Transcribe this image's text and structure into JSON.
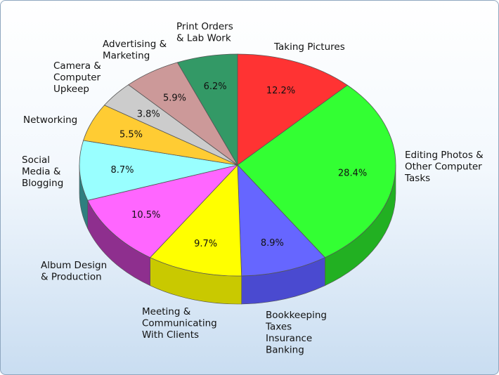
{
  "chart_data": {
    "type": "pie",
    "title": "",
    "slices": [
      {
        "label": [
          "Taking Pictures"
        ],
        "value": 12.2,
        "value_label": "12.2%",
        "color": "#ff3333",
        "side_color": "#cc1f1f"
      },
      {
        "label": [
          "Editing Photos &",
          "Other Computer",
          "Tasks"
        ],
        "value": 28.4,
        "value_label": "28.4%",
        "color": "#33ff33",
        "side_color": "#22b022"
      },
      {
        "label": [
          "Bookkeeping",
          "Taxes",
          "Insurance",
          "Banking"
        ],
        "value": 8.9,
        "value_label": "8.9%",
        "color": "#6666ff",
        "side_color": "#4a4ad0"
      },
      {
        "label": [
          "Meeting &",
          "Communicating",
          "With Clients"
        ],
        "value": 9.7,
        "value_label": "9.7%",
        "color": "#ffff00",
        "side_color": "#c9c900"
      },
      {
        "label": [
          "Album Design",
          "& Production"
        ],
        "value": 10.5,
        "value_label": "10.5%",
        "color": "#ff66ff",
        "side_color": "#8e2f8e"
      },
      {
        "label": [
          "Social",
          "Media &",
          "Blogging"
        ],
        "value": 8.7,
        "value_label": "8.7%",
        "color": "#99ffff",
        "side_color": "#2f7f7f"
      },
      {
        "label": [
          "Networking"
        ],
        "value": 5.5,
        "value_label": "5.5%",
        "color": "#ffcc33",
        "side_color": "#c99a1f"
      },
      {
        "label": [
          "Camera &",
          "Computer",
          "Upkeep"
        ],
        "value": 3.8,
        "value_label": "3.8%",
        "color": "#cccccc",
        "side_color": "#999999"
      },
      {
        "label": [
          "Advertising &",
          "Marketing"
        ],
        "value": 5.9,
        "value_label": "5.9%",
        "color": "#cc9999",
        "side_color": "#a07070"
      },
      {
        "label": [
          "Print Orders",
          "& Lab Work"
        ],
        "value": 6.2,
        "value_label": "6.2%",
        "color": "#339966",
        "side_color": "#1f6b44"
      }
    ]
  }
}
